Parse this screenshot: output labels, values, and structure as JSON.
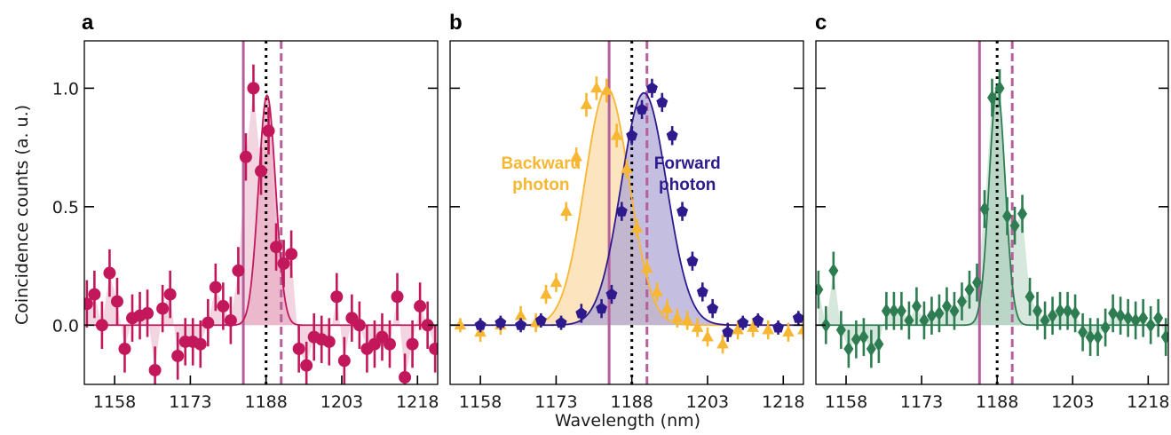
{
  "figure": {
    "ylabel": "Coincidence counts (a. u.)",
    "xlabel": "Wavelength (nm)",
    "colors": {
      "red": "#c2185b",
      "red_fill": "#eab3c9",
      "orange": "#f7b733",
      "orange_fill": "#f9dba8",
      "purple": "#2e1a8c",
      "purple_fill": "#b0a8d6",
      "overlap_fill": "#c29b80",
      "green": "#2e7d52",
      "green_fill": "#b4d3c2",
      "marker_line": "#b5609b",
      "dotted_line": "#000000"
    }
  },
  "chart_data": [
    {
      "type": "scatter",
      "panel": "a",
      "xlabel": "",
      "ylabel": "Coincidence counts (a. u.)",
      "xlim": [
        1152,
        1222
      ],
      "ylim": [
        -0.25,
        1.2
      ],
      "xticks": [
        1158,
        1173,
        1188,
        1203,
        1218
      ],
      "yticks": [
        0.0,
        0.5,
        1.0
      ],
      "ytick_labels": [
        "0.0",
        "0.5",
        "1.0"
      ],
      "vlines": {
        "solid": 1183.5,
        "dotted": 1188,
        "dashed": 1191
      },
      "series": [
        {
          "color_key": "red",
          "marker": "circle",
          "fit": {
            "center": 1188.2,
            "sigma": 1.7,
            "amp": 0.97,
            "baseline": 0.0
          },
          "x": [
            1152.5,
            1154,
            1155.5,
            1157,
            1158.5,
            1160,
            1161.5,
            1163,
            1164.5,
            1166,
            1167.5,
            1169,
            1170.5,
            1172,
            1173.5,
            1175,
            1176.5,
            1178,
            1179.5,
            1181,
            1182.5,
            1184,
            1185.5,
            1187,
            1188.5,
            1190,
            1191.5,
            1193,
            1194.5,
            1196,
            1197.5,
            1199,
            1200.5,
            1202,
            1203.5,
            1205,
            1206.5,
            1208,
            1209.5,
            1211,
            1212.5,
            1214,
            1215.5,
            1217,
            1218.5,
            1220,
            1221.5
          ],
          "y": [
            0.09,
            0.13,
            0.0,
            0.22,
            0.1,
            -0.1,
            0.03,
            0.04,
            0.05,
            -0.19,
            0.07,
            0.13,
            -0.13,
            -0.07,
            -0.07,
            -0.08,
            0.01,
            0.16,
            0.08,
            0.02,
            0.23,
            0.71,
            1.0,
            0.65,
            0.82,
            0.33,
            0.26,
            0.3,
            -0.1,
            -0.17,
            -0.05,
            -0.06,
            -0.07,
            0.12,
            -0.15,
            0.03,
            0.0,
            -0.1,
            -0.08,
            -0.05,
            -0.08,
            0.12,
            -0.22,
            -0.08,
            0.08,
            0.0,
            -0.1
          ],
          "err": [
            0.1,
            0.1,
            0.1,
            0.1,
            0.1,
            0.1,
            0.1,
            0.1,
            0.1,
            0.1,
            0.1,
            0.1,
            0.1,
            0.1,
            0.1,
            0.1,
            0.1,
            0.1,
            0.1,
            0.1,
            0.1,
            0.1,
            0.1,
            0.1,
            0.1,
            0.1,
            0.1,
            0.1,
            0.1,
            0.1,
            0.1,
            0.1,
            0.1,
            0.1,
            0.1,
            0.1,
            0.1,
            0.1,
            0.1,
            0.1,
            0.1,
            0.1,
            0.1,
            0.1,
            0.1,
            0.1,
            0.1
          ]
        }
      ]
    },
    {
      "type": "scatter",
      "panel": "b",
      "xlabel": "Wavelength (nm)",
      "ylabel": "",
      "xlim": [
        1152,
        1222
      ],
      "ylim": [
        -0.25,
        1.2
      ],
      "xticks": [
        1158,
        1173,
        1188,
        1203,
        1218
      ],
      "yticks": [
        0.0,
        0.5,
        1.0
      ],
      "vlines": {
        "solid": 1183.5,
        "dotted": 1188,
        "dashed": 1191
      },
      "annotations": [
        {
          "lines": [
            "Backward",
            "photon"
          ],
          "color_key": "orange",
          "x": 1170,
          "y": 0.66
        },
        {
          "lines": [
            "Forward",
            "photon"
          ],
          "color_key": "purple",
          "x": 1199,
          "y": 0.66
        }
      ],
      "series": [
        {
          "name": "Backward photon",
          "color_key": "orange",
          "marker": "triangle",
          "fit": {
            "center": 1183.1,
            "sigma": 4.4,
            "amp": 1.0,
            "baseline": 0.0
          },
          "x": [
            1154,
            1158,
            1162,
            1166,
            1169,
            1171,
            1173,
            1175,
            1177,
            1179,
            1181,
            1183,
            1185,
            1187,
            1189,
            1191,
            1193,
            1195,
            1197,
            1199,
            1201,
            1203,
            1206,
            1209,
            1212,
            1215,
            1219,
            1222
          ],
          "y": [
            0.0,
            -0.03,
            0.0,
            0.04,
            0.01,
            0.13,
            0.18,
            0.48,
            0.71,
            0.93,
            1.0,
            0.99,
            0.8,
            0.66,
            0.41,
            0.24,
            0.14,
            0.07,
            0.03,
            0.02,
            -0.01,
            -0.05,
            -0.08,
            -0.02,
            -0.01,
            -0.02,
            -0.03,
            -0.02
          ],
          "err": [
            0.03,
            0.04,
            0.04,
            0.04,
            0.04,
            0.04,
            0.04,
            0.04,
            0.04,
            0.05,
            0.05,
            0.05,
            0.05,
            0.04,
            0.04,
            0.04,
            0.04,
            0.04,
            0.04,
            0.04,
            0.04,
            0.04,
            0.04,
            0.04,
            0.04,
            0.04,
            0.04,
            0.04
          ]
        },
        {
          "name": "Forward photon",
          "color_key": "purple",
          "marker": "pentagon",
          "fit": {
            "center": 1190.4,
            "sigma": 4.5,
            "amp": 0.98,
            "baseline": 0.0
          },
          "x": [
            1158,
            1162,
            1166,
            1170,
            1174,
            1178,
            1182,
            1184,
            1186,
            1188,
            1190,
            1192,
            1194,
            1196,
            1198,
            1200,
            1202,
            1204,
            1207,
            1210,
            1213,
            1217,
            1221
          ],
          "y": [
            0.0,
            0.01,
            0.0,
            0.02,
            0.01,
            0.05,
            0.07,
            0.13,
            0.48,
            0.8,
            0.91,
            1.0,
            0.94,
            0.8,
            0.48,
            0.27,
            0.14,
            0.07,
            -0.03,
            0.01,
            0.02,
            -0.01,
            0.03
          ],
          "err": [
            0.03,
            0.03,
            0.03,
            0.03,
            0.03,
            0.04,
            0.04,
            0.04,
            0.04,
            0.04,
            0.04,
            0.04,
            0.04,
            0.04,
            0.04,
            0.04,
            0.04,
            0.04,
            0.04,
            0.03,
            0.03,
            0.03,
            0.03
          ]
        }
      ]
    },
    {
      "type": "scatter",
      "panel": "c",
      "xlabel": "",
      "ylabel": "",
      "xlim": [
        1152,
        1222
      ],
      "ylim": [
        -0.25,
        1.2
      ],
      "xticks": [
        1158,
        1173,
        1188,
        1203,
        1218
      ],
      "yticks": [
        0.0,
        0.5,
        1.0
      ],
      "vlines": {
        "solid": 1184.5,
        "dotted": 1188,
        "dashed": 1191
      },
      "series": [
        {
          "color_key": "green",
          "marker": "diamond",
          "fit": {
            "center": 1188.0,
            "sigma": 1.6,
            "amp": 1.0,
            "baseline": 0.0
          },
          "x": [
            1152.5,
            1154,
            1155.5,
            1157,
            1158.5,
            1160,
            1161.5,
            1163,
            1164.5,
            1166,
            1167.5,
            1169,
            1170.5,
            1172,
            1173.5,
            1175,
            1176.5,
            1178,
            1179.5,
            1181,
            1182.5,
            1184,
            1185.5,
            1187,
            1188.5,
            1190,
            1191.5,
            1193,
            1194.5,
            1196,
            1197.5,
            1199,
            1200.5,
            1202,
            1203.5,
            1205,
            1206.5,
            1208,
            1209.5,
            1211,
            1212.5,
            1214,
            1215.5,
            1217,
            1218.5,
            1220,
            1221.5
          ],
          "y": [
            0.15,
            0.0,
            0.23,
            -0.02,
            -0.1,
            -0.06,
            -0.05,
            -0.1,
            -0.08,
            0.06,
            0.06,
            0.06,
            0.02,
            0.08,
            0.02,
            0.04,
            0.05,
            0.08,
            0.06,
            0.1,
            0.15,
            0.18,
            0.49,
            0.96,
            1.0,
            0.46,
            0.42,
            0.47,
            0.12,
            0.06,
            0.02,
            0.04,
            0.06,
            0.06,
            0.05,
            -0.03,
            -0.05,
            -0.05,
            -0.01,
            0.05,
            0.04,
            0.03,
            0.02,
            0.03,
            0.0,
            0.03,
            -0.05
          ],
          "err": [
            0.08,
            0.08,
            0.08,
            0.08,
            0.08,
            0.08,
            0.08,
            0.08,
            0.08,
            0.08,
            0.08,
            0.08,
            0.08,
            0.08,
            0.08,
            0.08,
            0.08,
            0.08,
            0.08,
            0.08,
            0.08,
            0.08,
            0.08,
            0.08,
            0.08,
            0.08,
            0.08,
            0.08,
            0.08,
            0.08,
            0.08,
            0.08,
            0.08,
            0.08,
            0.08,
            0.08,
            0.08,
            0.08,
            0.08,
            0.08,
            0.08,
            0.08,
            0.08,
            0.08,
            0.08,
            0.08,
            0.08
          ]
        }
      ]
    }
  ]
}
